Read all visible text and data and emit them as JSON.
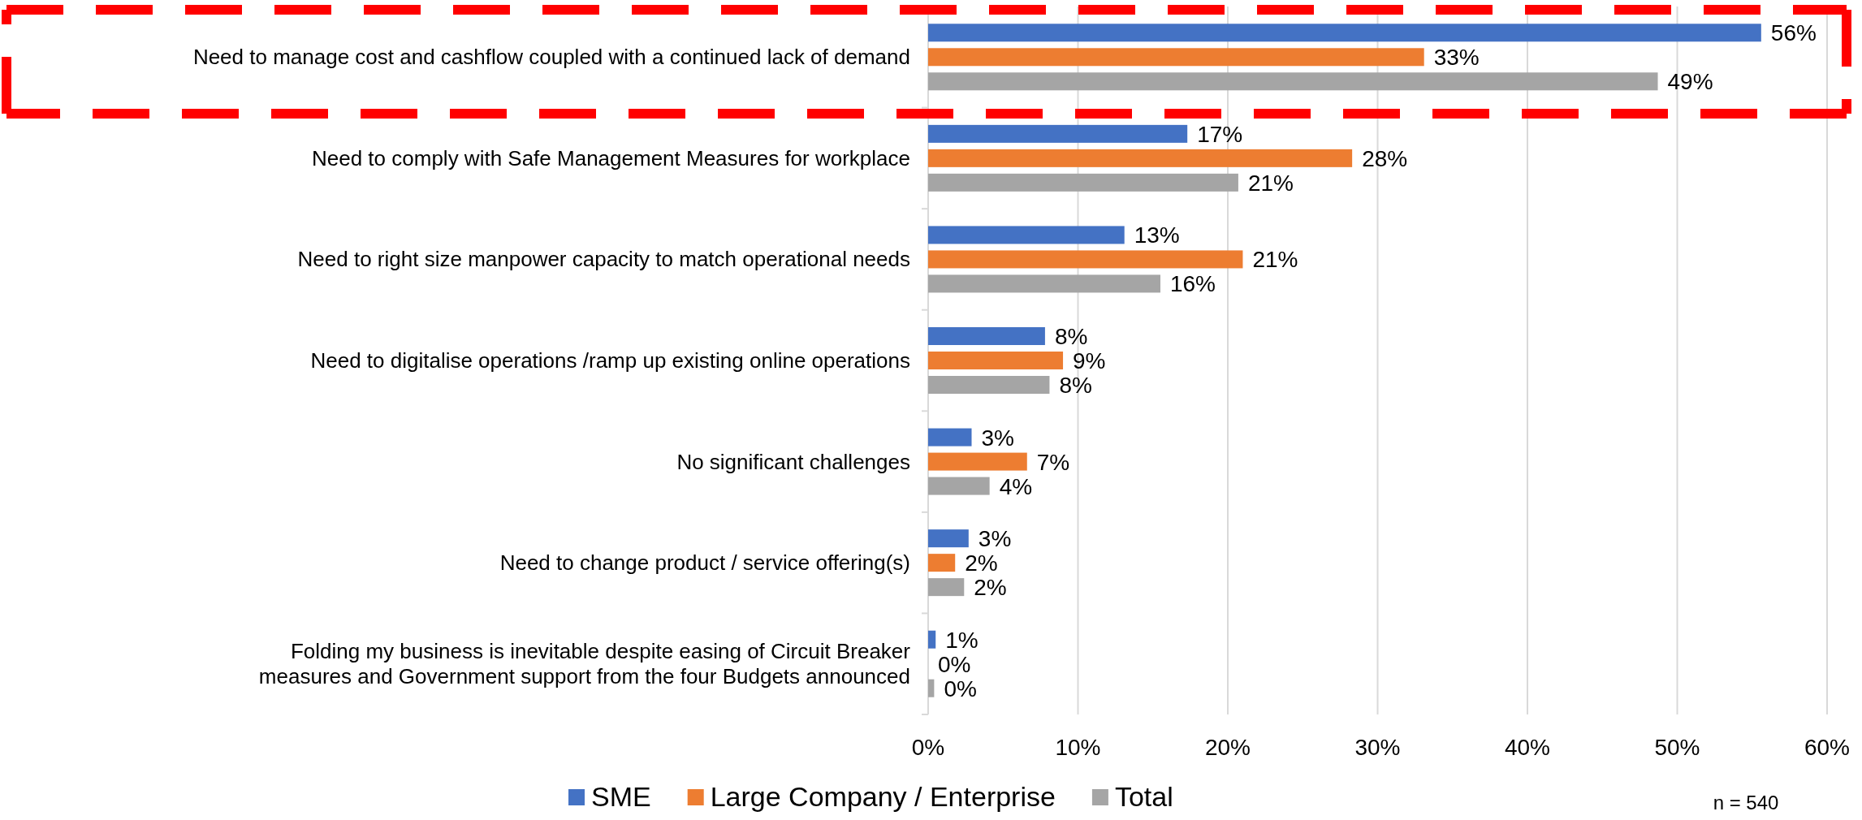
{
  "chart_data": {
    "type": "bar",
    "orientation": "horizontal",
    "categories": [
      "Need to manage cost and cashflow coupled with a continued lack of demand",
      "Need to comply with Safe Management Measures for workplace",
      "Need to right size manpower capacity to match operational needs",
      "Need to digitalise operations /ramp up existing online operations",
      "No significant challenges",
      "Need to change product / service offering(s)",
      "Folding my business is inevitable despite easing of Circuit Breaker measures and Government support from the four Budgets announced"
    ],
    "series": [
      {
        "name": "SME",
        "color": "#4472c4",
        "values": [
          55.6,
          17.3,
          13.1,
          7.8,
          2.9,
          2.7,
          0.5
        ],
        "value_labels": [
          "56%",
          "17%",
          "13%",
          "8%",
          "3%",
          "3%",
          "1%"
        ]
      },
      {
        "name": "Large Company / Enterprise",
        "color": "#ed7d31",
        "values": [
          33.1,
          28.3,
          21.0,
          9.0,
          6.6,
          1.8,
          0
        ],
        "value_labels": [
          "33%",
          "28%",
          "21%",
          "9%",
          "7%",
          "2%",
          "0%"
        ]
      },
      {
        "name": "Total",
        "color": "#a5a5a5",
        "values": [
          48.7,
          20.7,
          15.5,
          8.1,
          4.1,
          2.4,
          0.4
        ],
        "value_labels": [
          "49%",
          "21%",
          "16%",
          "8%",
          "4%",
          "2%",
          "0%"
        ]
      }
    ],
    "xlim": [
      0,
      60
    ],
    "xticks": [
      {
        "value": 0,
        "label": "0%"
      },
      {
        "value": 10,
        "label": "10%"
      },
      {
        "value": 20,
        "label": "20%"
      },
      {
        "value": 30,
        "label": "30%"
      },
      {
        "value": 40,
        "label": "40%"
      },
      {
        "value": 50,
        "label": "50%"
      },
      {
        "value": 60,
        "label": "60%"
      }
    ],
    "grid": "x",
    "legend": "bottom",
    "annotations": [
      "n = 540"
    ]
  }
}
